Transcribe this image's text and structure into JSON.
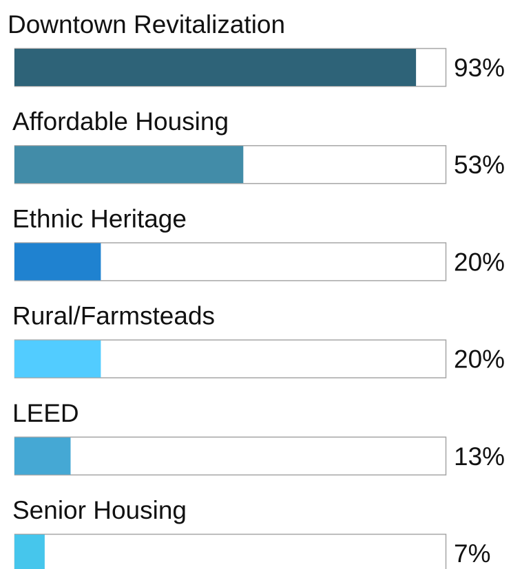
{
  "chart_data": {
    "type": "bar",
    "orientation": "horizontal",
    "categories": [
      "Downtown Revitalization",
      "Affordable Housing",
      "Ethnic Heritage",
      "Rural/Farmsteads",
      "LEED",
      "Senior Housing"
    ],
    "values": [
      93,
      53,
      20,
      20,
      13,
      7
    ],
    "value_labels": [
      "93%",
      "53%",
      "20%",
      "20%",
      "13%",
      "7%"
    ],
    "colors": [
      "#2e6378",
      "#428ca8",
      "#1f82d0",
      "#52ccff",
      "#45a8d4",
      "#46c6ec"
    ],
    "xlim": [
      0,
      100
    ]
  }
}
